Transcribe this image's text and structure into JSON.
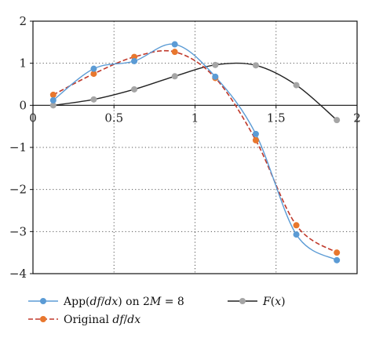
{
  "chart_data": {
    "type": "line",
    "title": "",
    "xlabel": "",
    "ylabel": "",
    "xlim": [
      0,
      2
    ],
    "ylim": [
      -4,
      2
    ],
    "x_ticks": [
      0,
      0.5,
      1,
      1.5,
      2
    ],
    "x_tick_labels": [
      "0",
      "0.5",
      "1",
      "1.5",
      "2"
    ],
    "y_ticks": [
      -4,
      -3,
      -2,
      -1,
      0,
      1,
      2
    ],
    "y_tick_labels": [
      "−4",
      "−3",
      "−2",
      "−1",
      "0",
      "1",
      "2"
    ],
    "grid": "dotted",
    "legend_position": "bottom",
    "series": [
      {
        "key": "approx",
        "legend_parts": [
          {
            "t": "App(",
            "it": false
          },
          {
            "t": "df",
            "it": true
          },
          {
            "t": "/",
            "it": false
          },
          {
            "t": "dx",
            "it": true
          },
          {
            "t": ") on 2",
            "it": false
          },
          {
            "t": "M",
            "it": true
          },
          {
            "t": " = 8",
            "it": false
          }
        ],
        "color": "#5b9bd5",
        "line_style": "solid",
        "x": [
          0.125,
          0.375,
          0.625,
          0.875,
          1.125,
          1.375,
          1.625,
          1.875
        ],
        "y": [
          0.12,
          0.87,
          1.05,
          1.45,
          0.68,
          -0.68,
          -3.07,
          -3.68
        ]
      },
      {
        "key": "original",
        "legend_parts": [
          {
            "t": "Original ",
            "it": false
          },
          {
            "t": "df",
            "it": true
          },
          {
            "t": "/",
            "it": false
          },
          {
            "t": "dx",
            "it": true
          }
        ],
        "color": "#e8772e",
        "line_color": "#c0392b",
        "line_style": "dashed",
        "x": [
          0.125,
          0.375,
          0.625,
          0.875,
          1.125,
          1.375,
          1.625,
          1.875
        ],
        "y": [
          0.25,
          0.75,
          1.15,
          1.27,
          0.65,
          -0.83,
          -2.85,
          -3.5
        ]
      },
      {
        "key": "F",
        "legend_parts": [
          {
            "t": "F",
            "it": true
          },
          {
            "t": "(",
            "it": false
          },
          {
            "t": "x",
            "it": true
          },
          {
            "t": ")",
            "it": false
          }
        ],
        "color": "#a5a5a5",
        "line_color": "#222222",
        "line_style": "solid",
        "x": [
          0.125,
          0.375,
          0.625,
          0.875,
          1.125,
          1.375,
          1.625,
          1.875
        ],
        "y": [
          0.0,
          0.14,
          0.38,
          0.69,
          0.96,
          0.95,
          0.48,
          -0.35
        ]
      }
    ]
  }
}
